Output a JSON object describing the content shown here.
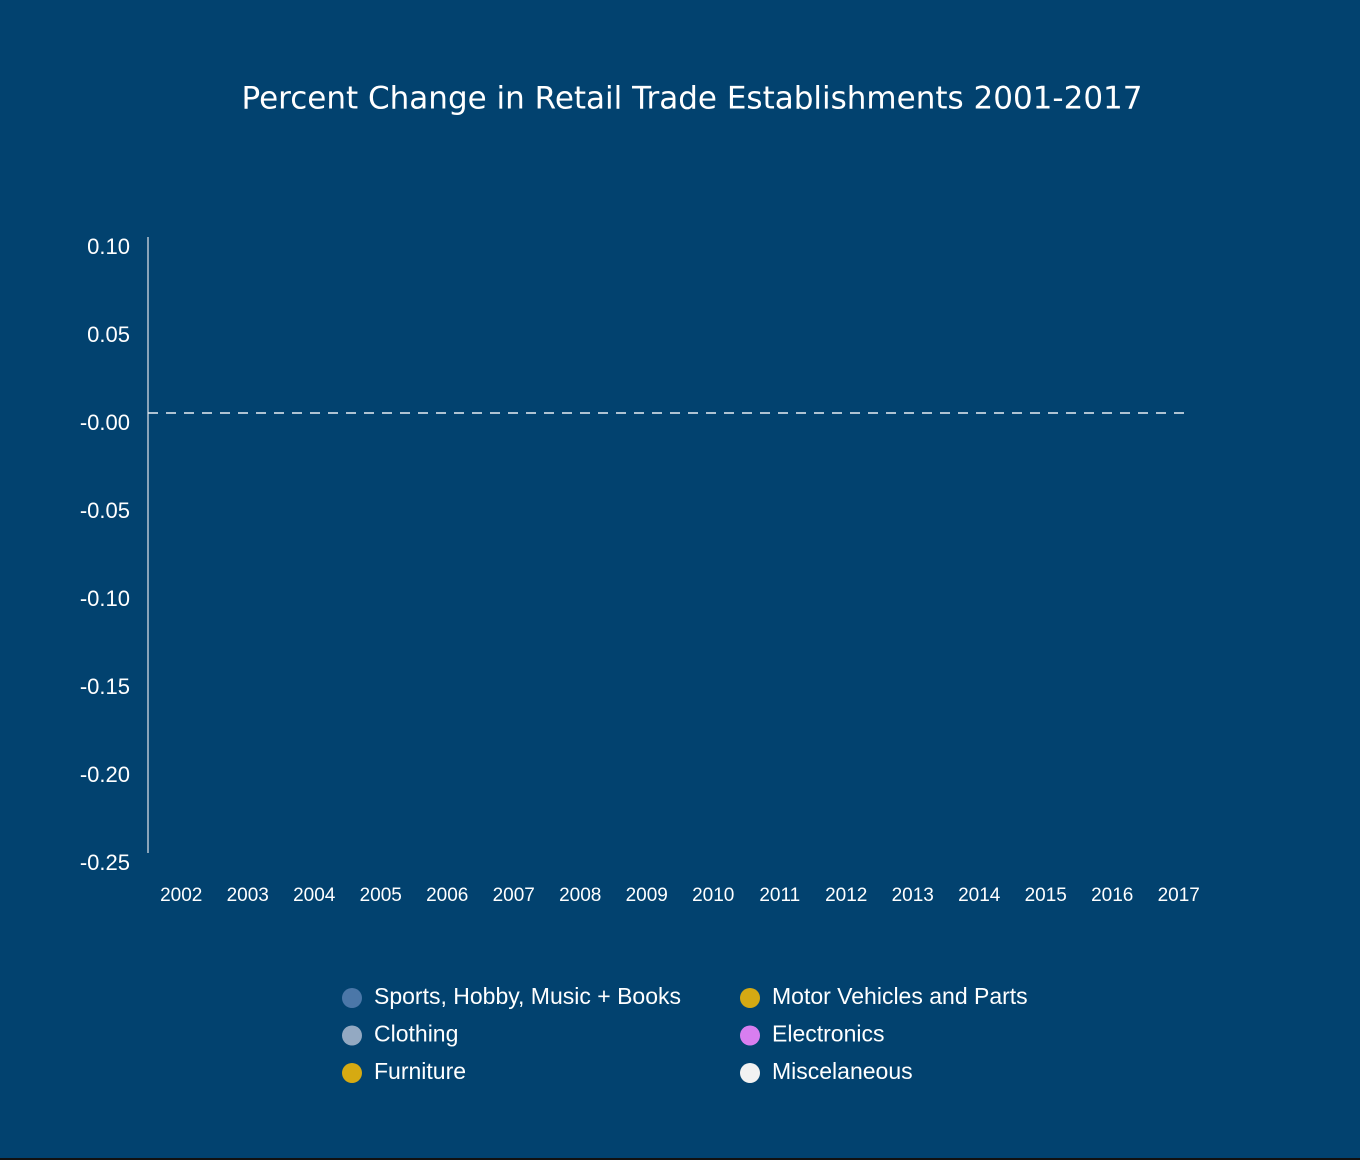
{
  "chart_data": {
    "type": "line",
    "title": "Percent Change in Retail Trade Establishments 2001-2017",
    "categories": [
      "2002",
      "2003",
      "2004",
      "2005",
      "2006",
      "2007",
      "2008",
      "2009",
      "2010",
      "2011",
      "2012",
      "2013",
      "2014",
      "2015",
      "2016",
      "2017"
    ],
    "series": [
      {
        "name": "Sports, Hobby, Music + Books",
        "color": "#4b77a8",
        "values": [
          null,
          null,
          null,
          null,
          null,
          null,
          null,
          null,
          null,
          null,
          null,
          null,
          null,
          null,
          null,
          null
        ]
      },
      {
        "name": "Clothing",
        "color": "#93a9c2",
        "values": [
          null,
          null,
          null,
          null,
          null,
          null,
          null,
          null,
          null,
          null,
          null,
          null,
          null,
          null,
          null,
          null
        ]
      },
      {
        "name": "Furniture",
        "color": "#d6aa12",
        "values": [
          null,
          null,
          null,
          null,
          null,
          null,
          null,
          null,
          null,
          null,
          null,
          null,
          null,
          null,
          null,
          null
        ]
      },
      {
        "name": "Motor Vehicles and Parts",
        "color": "#d4a913",
        "values": [
          null,
          null,
          null,
          null,
          null,
          null,
          null,
          null,
          null,
          null,
          null,
          null,
          null,
          null,
          null,
          null
        ]
      },
      {
        "name": "Electronics",
        "color": "#d87ef0",
        "values": [
          null,
          null,
          null,
          null,
          null,
          null,
          null,
          null,
          null,
          null,
          null,
          null,
          null,
          null,
          null,
          null
        ]
      },
      {
        "name": "Miscelaneous",
        "color": "#f2f2f2",
        "values": [
          null,
          null,
          null,
          null,
          null,
          null,
          null,
          null,
          null,
          null,
          null,
          null,
          null,
          null,
          null,
          null
        ]
      }
    ],
    "ylim": [
      -0.25,
      0.1
    ],
    "yticks": [
      {
        "value": 0.1,
        "label": "0.10"
      },
      0.05,
      {
        "value": 0,
        "label": "-0.00"
      },
      -0.05,
      {
        "value": -0.1,
        "label": "-0.10"
      },
      -0.15,
      {
        "value": -0.2,
        "label": "-0.20"
      },
      -0.25
    ]
  }
}
